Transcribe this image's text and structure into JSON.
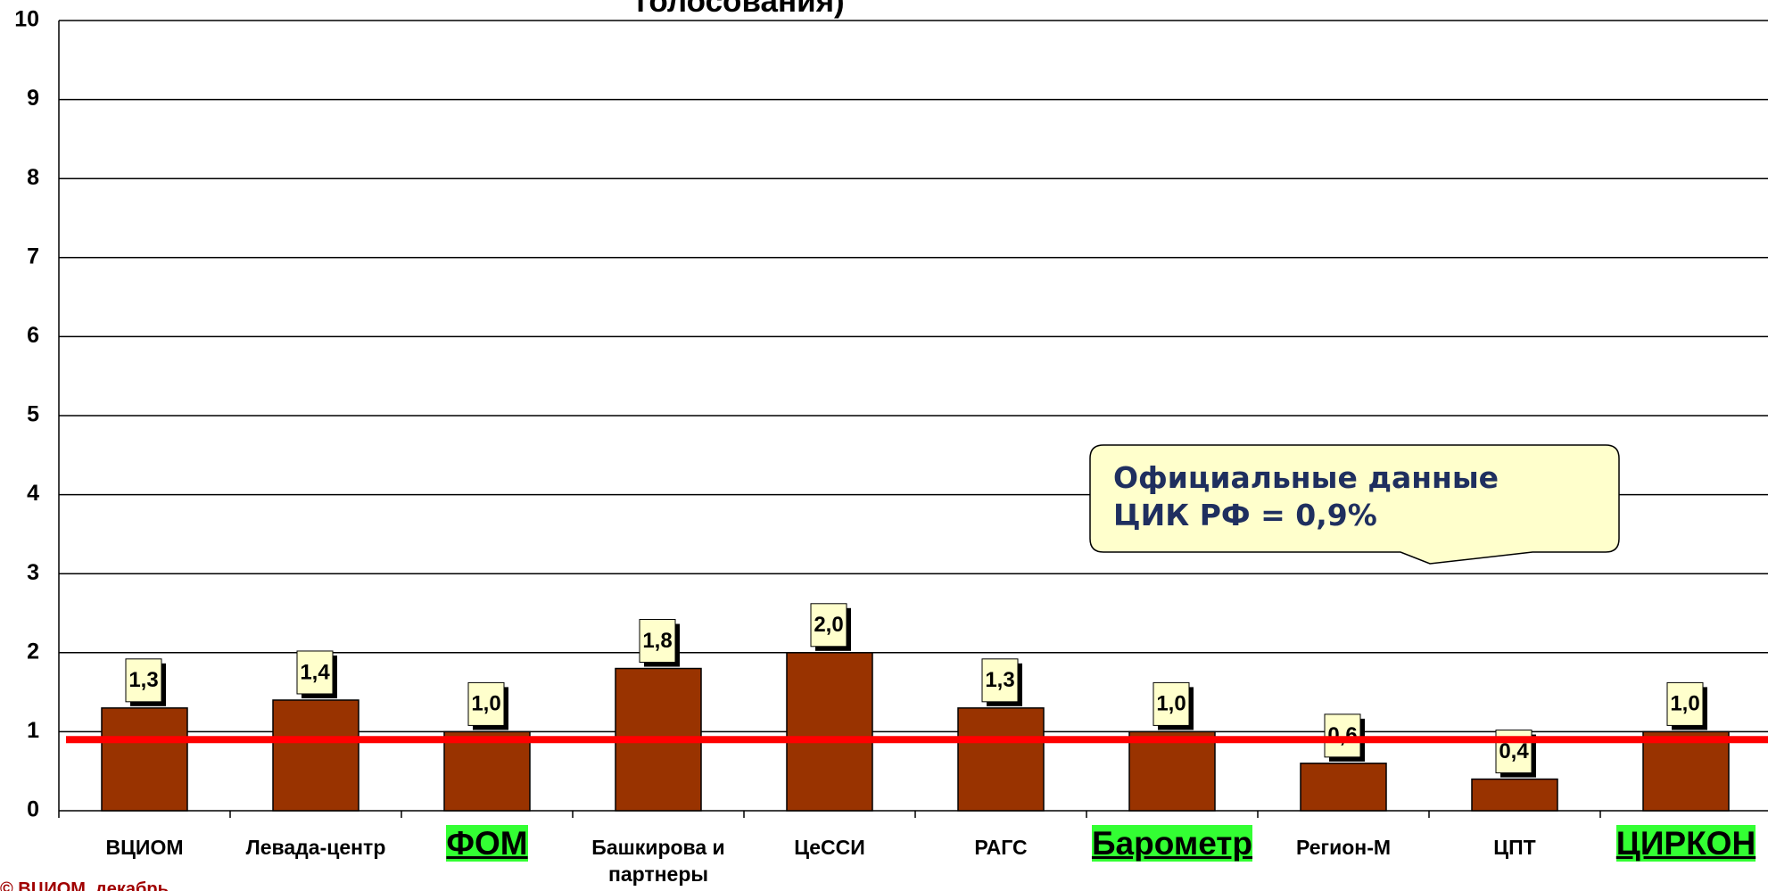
{
  "chart_data": {
    "type": "bar",
    "title": "голосования)",
    "footer": "© ВЦИОМ, декабрь",
    "categories": [
      "ВЦИОМ",
      "Левада-центр",
      "ФОМ",
      "Башкирова и партнеры",
      "ЦеССИ",
      "РАГС",
      "Барометр",
      "Регион-М",
      "ЦПТ",
      "ЦИРКОН"
    ],
    "highlighted": [
      false,
      false,
      true,
      false,
      false,
      false,
      true,
      false,
      false,
      true
    ],
    "values": [
      1.3,
      1.4,
      1.0,
      1.8,
      2.0,
      1.3,
      1.0,
      0.6,
      0.4,
      1.0
    ],
    "value_labels": [
      "1,3",
      "1,4",
      "1,0",
      "1,8",
      "2,0",
      "1,3",
      "1,0",
      "0,6",
      "0,4",
      "1,0"
    ],
    "color": "#993300",
    "ylim": [
      0,
      10
    ],
    "yticks": [
      0,
      1,
      2,
      3,
      4,
      5,
      6,
      7,
      8,
      9,
      10
    ],
    "grid": true,
    "reference_line": {
      "value": 0.9,
      "color": "#ff0000"
    },
    "annotation": [
      "Официальные данные",
      "ЦИК РФ = 0,9%"
    ]
  }
}
